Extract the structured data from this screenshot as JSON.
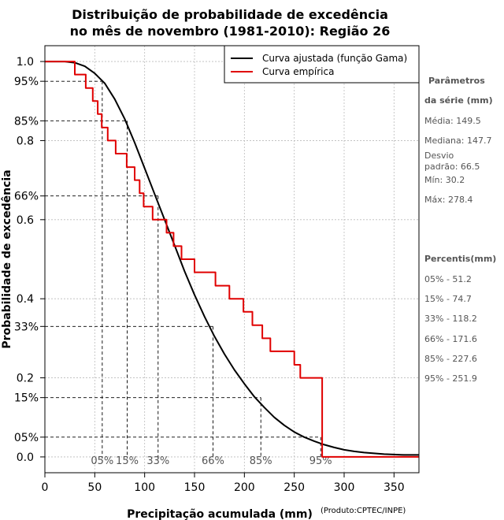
{
  "chart_data": {
    "type": "line",
    "title_line1": "Distribuição de probabilidade de excedência",
    "title_line2": "no mês de novembro (1981-2010): Região 26",
    "xlabel": "Precipitação acumulada (mm)",
    "ylabel": "Probabilidade de excedência",
    "source_note": "(Produto:CPTEC/INPE)",
    "xlim": [
      0,
      375
    ],
    "ylim": [
      -0.04,
      1.04
    ],
    "x_ticks": [
      0,
      50,
      100,
      150,
      200,
      250,
      300,
      350
    ],
    "x_tick_labels": [
      "0",
      "50",
      "100",
      "150",
      "200",
      "250",
      "300",
      "350"
    ],
    "y_ticks": [
      0.0,
      0.2,
      0.4,
      0.6,
      0.8,
      1.0
    ],
    "y_tick_labels": [
      "0.0",
      "0.2",
      "0.4",
      "0.6",
      "0.8",
      "1.0"
    ],
    "y_ref_ticks": [
      0.95,
      0.85,
      0.66,
      0.33,
      0.15,
      0.05
    ],
    "y_ref_labels": [
      "95%",
      "85%",
      "66%",
      "33%",
      "15%",
      "05%"
    ],
    "legend": [
      "Curva ajustada (função Gama)",
      "Curva empírica"
    ],
    "legend_position": "top-right",
    "grid": true,
    "series": [
      {
        "name": "Curva ajustada (função Gama)",
        "color": "#000000",
        "x": [
          0,
          20,
          30,
          40,
          50,
          60,
          70,
          80,
          90,
          100,
          110,
          120,
          130,
          140,
          150,
          160,
          170,
          180,
          190,
          200,
          210,
          220,
          230,
          240,
          250,
          260,
          270,
          280,
          290,
          300,
          310,
          320,
          330,
          340,
          350,
          360,
          375
        ],
        "y": [
          1.0,
          1.0,
          0.997,
          0.988,
          0.97,
          0.945,
          0.905,
          0.855,
          0.795,
          0.73,
          0.665,
          0.6,
          0.535,
          0.47,
          0.41,
          0.355,
          0.305,
          0.26,
          0.22,
          0.185,
          0.152,
          0.125,
          0.1,
          0.08,
          0.063,
          0.05,
          0.04,
          0.031,
          0.024,
          0.018,
          0.014,
          0.011,
          0.009,
          0.007,
          0.006,
          0.005,
          0.005
        ]
      },
      {
        "name": "Curva empírica",
        "color": "#e00000",
        "x": [
          0,
          30,
          30,
          41,
          41,
          48,
          48,
          53,
          53,
          57,
          57,
          63,
          63,
          71,
          71,
          82,
          82,
          90,
          90,
          95,
          95,
          99,
          99,
          108,
          108,
          122,
          122,
          129,
          129,
          137,
          137,
          150,
          150,
          171,
          171,
          185,
          185,
          199,
          199,
          208,
          208,
          218,
          218,
          226,
          226,
          250,
          250,
          256,
          256,
          278,
          278,
          375
        ],
        "y": [
          1.0,
          1.0,
          0.967,
          0.967,
          0.933,
          0.933,
          0.9,
          0.9,
          0.867,
          0.867,
          0.833,
          0.833,
          0.8,
          0.8,
          0.767,
          0.767,
          0.733,
          0.733,
          0.7,
          0.7,
          0.667,
          0.667,
          0.633,
          0.633,
          0.6,
          0.6,
          0.567,
          0.567,
          0.533,
          0.533,
          0.5,
          0.5,
          0.467,
          0.467,
          0.433,
          0.433,
          0.4,
          0.4,
          0.367,
          0.367,
          0.333,
          0.333,
          0.3,
          0.3,
          0.267,
          0.267,
          0.233,
          0.233,
          0.2,
          0.2,
          0.0,
          0.0
        ],
        "comment": "stepped empirical exceedance curve, approximate"
      }
    ],
    "percentile_markers": [
      {
        "label": "05%",
        "x": 57.5,
        "p": 0.95
      },
      {
        "label": "15%",
        "x": 82.5,
        "p": 0.85
      },
      {
        "label": "33%",
        "x": 113.5,
        "p": 0.66
      },
      {
        "label": "66%",
        "x": 168.5,
        "p": 0.33
      },
      {
        "label": "85%",
        "x": 216.5,
        "p": 0.15
      },
      {
        "label": "95%",
        "x": 276.5,
        "p": 0.05
      }
    ]
  },
  "side_panel": {
    "params_title_1": "Parâmetros",
    "params_title_2": "da série (mm)",
    "media": "Média: 149.5",
    "mediana": "Mediana: 147.7",
    "desvio_1": "Desvio",
    "desvio_2": "padrão: 66.5",
    "min": "Mín: 30.2",
    "max": "Máx: 278.4",
    "percentis_title": "Percentis(mm)",
    "percentis": [
      "05% - 51.2",
      "15% - 74.7",
      "33% - 118.2",
      "66% - 171.6",
      "85% - 227.6",
      "95% - 251.9"
    ]
  }
}
